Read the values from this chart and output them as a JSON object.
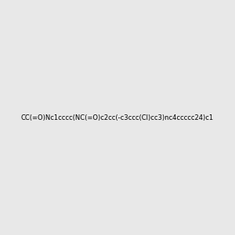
{
  "smiles": "CC(=O)Nc1cccc(NC(=O)c2cc(-c3ccc(Cl)cc3)nc4ccccc24)c1",
  "background_color": "#e8e8e8",
  "atom_colors": {
    "N": "#0000ff",
    "O": "#ff0000",
    "Cl": "#008000",
    "C": "#000000",
    "H": "#000000"
  },
  "title": "",
  "figsize": [
    3.0,
    3.0
  ],
  "dpi": 100
}
